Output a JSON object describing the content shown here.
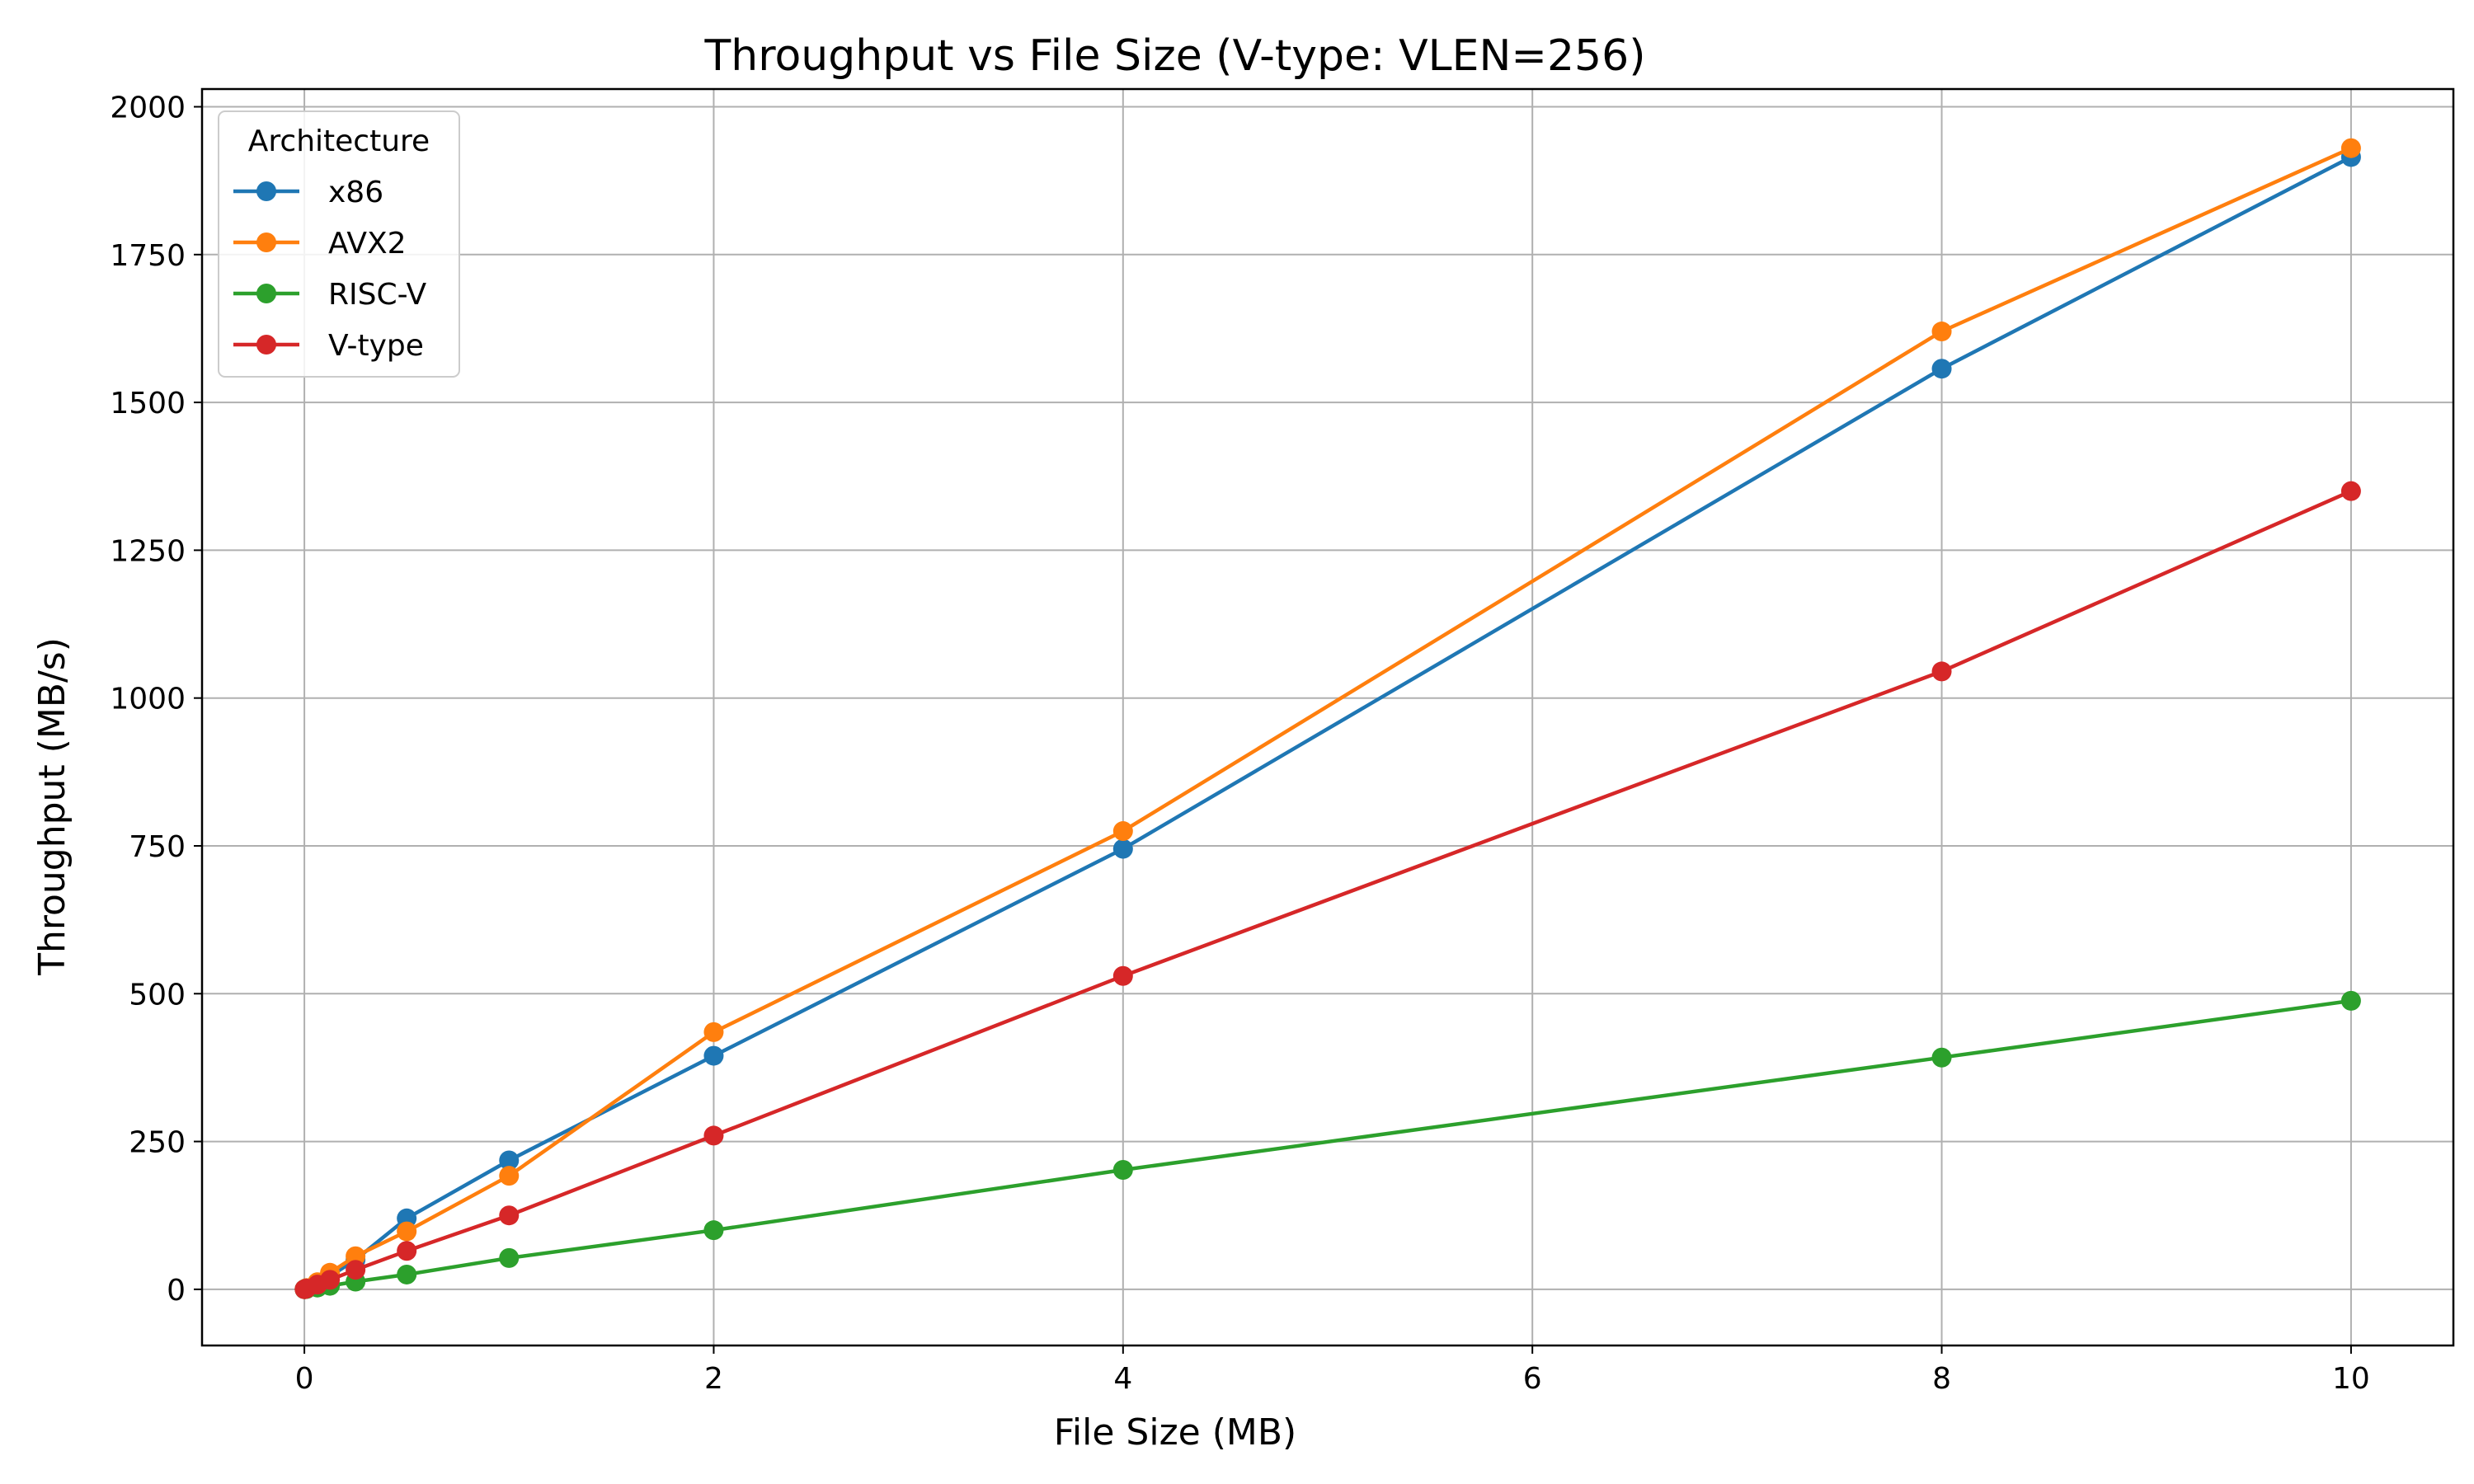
{
  "chart_data": {
    "type": "line",
    "title": "Throughput vs File Size (V-type: VLEN=256)",
    "xlabel": "File Size (MB)",
    "ylabel": "Throughput (MB/s)",
    "xlim": [
      -0.5,
      10.5
    ],
    "ylim": [
      -95,
      2030
    ],
    "xticks": [
      0,
      2,
      4,
      6,
      8,
      10
    ],
    "xtick_labels": [
      "0",
      "2",
      "4",
      "6",
      "8",
      "10"
    ],
    "yticks": [
      0,
      250,
      500,
      750,
      1000,
      1250,
      1500,
      1750,
      2000
    ],
    "ytick_labels": [
      "0",
      "250",
      "500",
      "750",
      "1000",
      "1250",
      "1500",
      "1750",
      "2000"
    ],
    "grid": true,
    "legend": {
      "title": "Architecture",
      "position": "top-left"
    },
    "x": [
      0.001,
      0.01,
      0.064,
      0.125,
      0.25,
      0.5,
      1,
      2,
      4,
      8,
      10
    ],
    "series": [
      {
        "name": "x86",
        "color": "#1f77b4",
        "values": [
          0.2,
          2,
          10,
          22,
          50,
          120,
          218,
          395,
          745,
          1557,
          1915
        ]
      },
      {
        "name": "AVX2",
        "color": "#ff7f0e",
        "values": [
          0.2,
          2,
          12,
          28,
          56,
          98,
          192,
          435,
          775,
          1620,
          1930
        ]
      },
      {
        "name": "RISC-V",
        "color": "#2ca02c",
        "values": [
          0.05,
          0.5,
          3,
          6,
          13,
          25,
          53,
          100,
          202,
          392,
          488
        ]
      },
      {
        "name": "V-type",
        "color": "#d62728",
        "values": [
          0.1,
          1.3,
          8,
          16,
          33,
          65,
          125,
          260,
          530,
          1045,
          1350
        ]
      }
    ]
  }
}
